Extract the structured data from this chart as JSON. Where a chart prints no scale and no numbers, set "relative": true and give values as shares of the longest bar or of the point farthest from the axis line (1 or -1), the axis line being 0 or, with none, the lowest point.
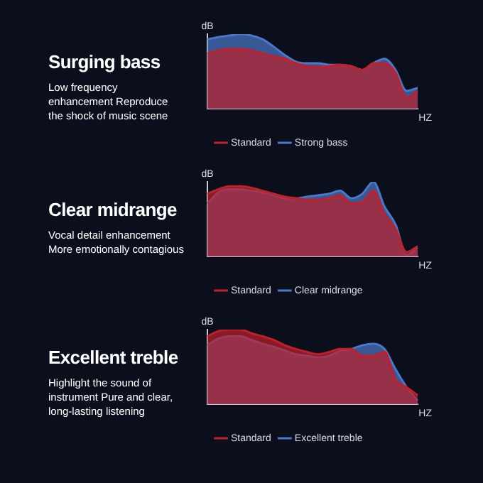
{
  "chart_data": [
    {
      "type": "area",
      "title": "Surging bass",
      "subtitle": "Low frequency enhancement Reproduce the shock of music scene",
      "xlabel": "HZ",
      "ylabel": "dB",
      "relative": true,
      "legend": "bottom",
      "grid": false,
      "categories": [
        null,
        null,
        null,
        null,
        null,
        null,
        null,
        null,
        null,
        null,
        null,
        null,
        null,
        null,
        null,
        null,
        null,
        null,
        null,
        null
      ],
      "series": [
        {
          "name": "Standard",
          "color": "#c0202a",
          "values": [
            0.74,
            0.78,
            0.8,
            0.8,
            0.78,
            0.74,
            0.7,
            0.67,
            0.61,
            0.57,
            0.56,
            0.57,
            0.59,
            0.57,
            0.52,
            0.61,
            0.61,
            0.48,
            0.15,
            0.24
          ]
        },
        {
          "name": "Strong bass",
          "color": "#4a78c8",
          "values": [
            0.93,
            0.96,
            0.98,
            1,
            0.98,
            0.93,
            0.83,
            0.72,
            0.63,
            0.61,
            0.61,
            0.59,
            0.59,
            0.57,
            0.52,
            0.61,
            0.67,
            0.52,
            0.24,
            0.28
          ]
        }
      ]
    },
    {
      "type": "area",
      "title": "Clear midrange",
      "subtitle": "Vocal detail enhancement More emotionally contagious",
      "xlabel": "HZ",
      "ylabel": "dB",
      "relative": true,
      "legend": "bottom",
      "grid": false,
      "categories": [
        null,
        null,
        null,
        null,
        null,
        null,
        null,
        null,
        null,
        null,
        null,
        null,
        null,
        null,
        null,
        null,
        null,
        null,
        null,
        null
      ],
      "series": [
        {
          "name": "Standard",
          "color": "#c0202a",
          "values": [
            0.84,
            0.9,
            0.94,
            0.94,
            0.92,
            0.88,
            0.84,
            0.8,
            0.78,
            0.76,
            0.76,
            0.78,
            0.82,
            0.71,
            0.73,
            0.88,
            0.57,
            0.37,
            0.06,
            0.14
          ]
        },
        {
          "name": "Clear midrange",
          "color": "#4a78c8",
          "values": [
            0.71,
            0.86,
            0.9,
            0.9,
            0.88,
            0.86,
            0.82,
            0.78,
            0.78,
            0.8,
            0.82,
            0.84,
            0.88,
            0.78,
            0.84,
            1,
            0.67,
            0.43,
            0.02,
            0.12
          ]
        }
      ]
    },
    {
      "type": "area",
      "title": "Excellent treble",
      "subtitle": "Highlight the sound of instrument Pure and clear, long-lasting listening",
      "xlabel": "HZ",
      "ylabel": "dB",
      "relative": true,
      "legend": "bottom",
      "grid": false,
      "categories": [
        null,
        null,
        null,
        null,
        null,
        null,
        null,
        null,
        null,
        null,
        null,
        null,
        null,
        null,
        null,
        null,
        null,
        null,
        null,
        null
      ],
      "series": [
        {
          "name": "Standard",
          "color": "#c0202a",
          "values": [
            0.91,
            0.98,
            1,
            1,
            0.95,
            0.91,
            0.86,
            0.79,
            0.74,
            0.7,
            0.67,
            0.7,
            0.74,
            0.74,
            0.65,
            0.65,
            0.7,
            0.33,
            0.23,
            0.12
          ]
        },
        {
          "name": "Excellent treble",
          "color": "#4a78c8",
          "values": [
            0.79,
            0.88,
            0.91,
            0.91,
            0.86,
            0.81,
            0.77,
            0.72,
            0.67,
            0.65,
            0.63,
            0.65,
            0.72,
            0.74,
            0.79,
            0.81,
            0.74,
            0.47,
            0.23,
            0.05
          ]
        }
      ]
    }
  ]
}
